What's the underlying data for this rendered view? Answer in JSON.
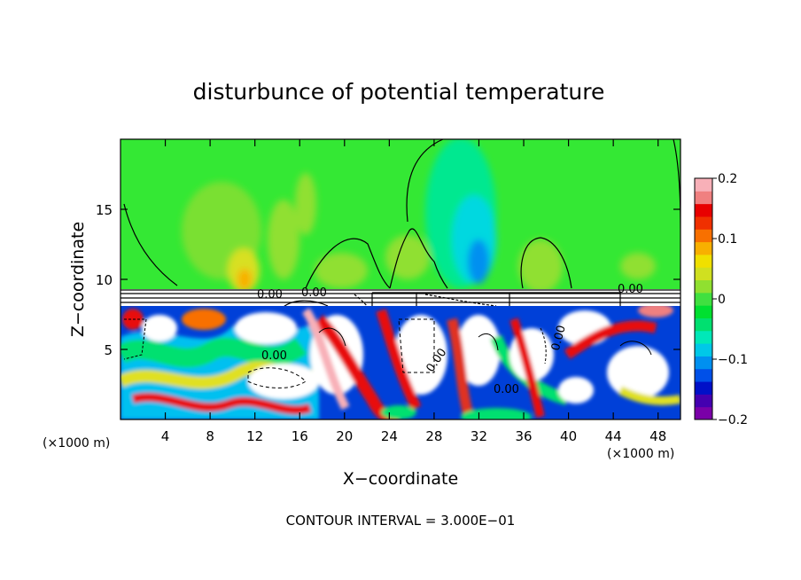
{
  "chart_data": {
    "type": "heatmap",
    "title": "disturbunce of potential temperature",
    "xlabel": "X−coordinate",
    "ylabel": "Z−coordinate",
    "x_unit_left": "(×1000 m)",
    "x_unit_right": "(×1000 m)",
    "xlim": [
      0,
      50
    ],
    "ylim": [
      0,
      20
    ],
    "x_ticks": [
      4,
      8,
      12,
      16,
      20,
      24,
      28,
      32,
      36,
      40,
      44,
      48
    ],
    "y_ticks": [
      5,
      10,
      15
    ],
    "colorbar": {
      "min": -0.2,
      "max": 0.2,
      "tick_labels": [
        "0.2",
        "0.1",
        "0",
        "−0.1",
        "−0.2"
      ],
      "tick_values": [
        0.2,
        0.1,
        0,
        -0.1,
        -0.2
      ],
      "colors": [
        "#7a00a8",
        "#4400b0",
        "#0010c8",
        "#0050e8",
        "#0090f0",
        "#00c8e8",
        "#00e8b8",
        "#00e070",
        "#00e030",
        "#40e040",
        "#90e030",
        "#d0e020",
        "#f0e000",
        "#f8b000",
        "#f87000",
        "#f03000",
        "#e80000",
        "#f08080",
        "#f8b0b8"
      ]
    },
    "contour_labels": [
      "0.00",
      "0.00",
      "0.00",
      "0.00",
      "0.00",
      "0.00",
      "0.00"
    ],
    "footer": "CONTOUR INTERVAL = 3.000E−01",
    "grid": false,
    "legend": "colorbar-right"
  }
}
